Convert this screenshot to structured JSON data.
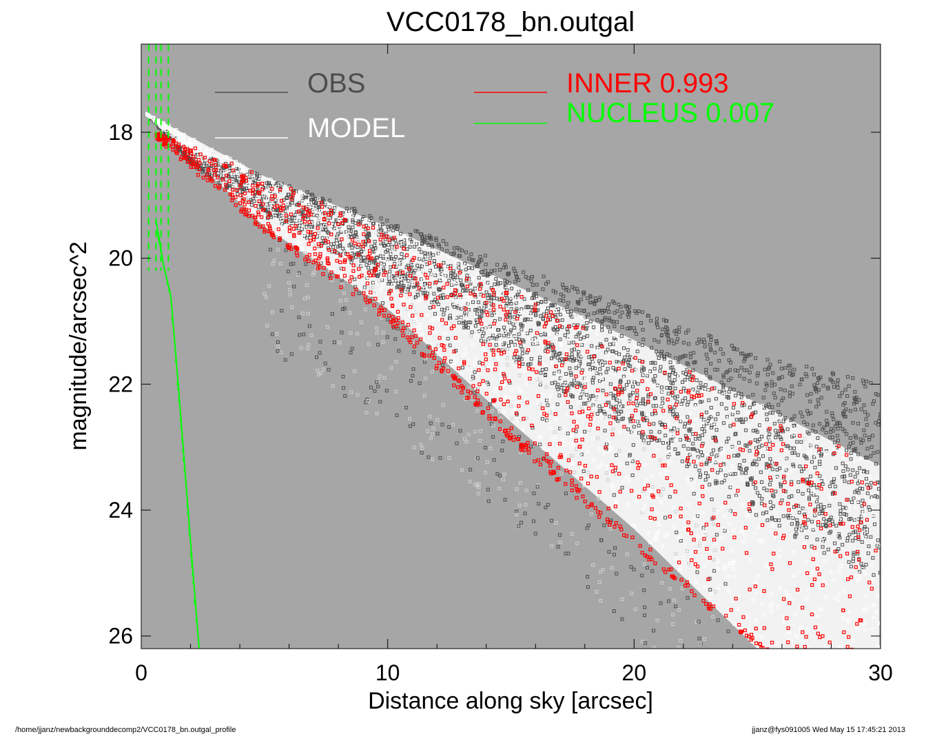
{
  "chart_data": {
    "type": "scatter",
    "title": "VCC0178_bn.outgal",
    "xlabel": "Distance along sky [arcsec]",
    "ylabel": "magnitude/arcsec^2",
    "xlim": [
      0,
      30
    ],
    "ylim": [
      26.2,
      16.6
    ],
    "y_inverted": true,
    "x_ticks": [
      "0",
      "10",
      "20",
      "30"
    ],
    "y_ticks": [
      "18",
      "20",
      "22",
      "24",
      "26"
    ],
    "background_color": "#a6a6a6",
    "legend": [
      {
        "label": "OBS",
        "color": "#4d4d4d"
      },
      {
        "label": "MODEL",
        "color": "#ffffff"
      },
      {
        "label": "INNER",
        "value": "0.993",
        "color": "#ff0000"
      },
      {
        "label": "NUCLEUS",
        "value": "0.007",
        "color": "#00ff00"
      }
    ],
    "series": [
      {
        "name": "OBS",
        "color": "#4d4d4d",
        "band_upper": [
          [
            0.2,
            17.7
          ],
          [
            2,
            18.3
          ],
          [
            5,
            18.7
          ],
          [
            10,
            19.4
          ],
          [
            15,
            20.1
          ],
          [
            20,
            20.8
          ],
          [
            25,
            21.5
          ],
          [
            30,
            22.0
          ]
        ],
        "band_lower": [
          [
            0.2,
            17.7
          ],
          [
            2,
            18.5
          ],
          [
            5,
            19.3
          ],
          [
            10,
            20.4
          ],
          [
            15,
            21.6
          ],
          [
            20,
            22.8
          ],
          [
            25,
            24.1
          ],
          [
            30,
            25.2
          ]
        ],
        "scatter_lower_extent": [
          [
            5,
            20.2
          ],
          [
            10,
            21.5
          ],
          [
            15,
            23.0
          ],
          [
            20,
            24.8
          ],
          [
            22,
            25.8
          ]
        ]
      },
      {
        "name": "MODEL",
        "color": "#ffffff",
        "edge_upper": [
          [
            0.2,
            17.7
          ],
          [
            5,
            18.7
          ],
          [
            10,
            19.5
          ],
          [
            15,
            20.4
          ],
          [
            20,
            21.3
          ],
          [
            25,
            22.3
          ],
          [
            30,
            23.3
          ]
        ],
        "edge_lower": [
          [
            0.2,
            17.7
          ],
          [
            5,
            19.5
          ],
          [
            10,
            20.8
          ],
          [
            15,
            22.6
          ],
          [
            20,
            24.3
          ],
          [
            25,
            26.2
          ],
          [
            30,
            27.5
          ]
        ]
      },
      {
        "name": "INNER",
        "value": 0.993,
        "color": "#ff0000",
        "edge_upper": [
          [
            0.6,
            18.0
          ],
          [
            5,
            18.7
          ],
          [
            10,
            19.6
          ],
          [
            15,
            20.5
          ],
          [
            20,
            21.4
          ],
          [
            25,
            22.3
          ],
          [
            30,
            23.3
          ]
        ],
        "edge_lower": [
          [
            0.6,
            18.1
          ],
          [
            5,
            19.6
          ],
          [
            10,
            21.0
          ],
          [
            15,
            22.9
          ],
          [
            20,
            24.6
          ],
          [
            25,
            26.2
          ]
        ]
      },
      {
        "name": "NUCLEUS",
        "value": 0.007,
        "color": "#00ff00",
        "line": [
          [
            0.6,
            19.4
          ],
          [
            0.9,
            20.1
          ],
          [
            1.2,
            20.6
          ],
          [
            1.5,
            22.0
          ],
          [
            1.8,
            23.5
          ],
          [
            2.1,
            25.0
          ],
          [
            2.35,
            26.2
          ]
        ],
        "dashes_x": [
          0.3,
          0.6,
          0.8,
          1.1
        ]
      }
    ]
  },
  "footer": {
    "path": "/home/jjanz/newbackgrounddecomp2/VCC0178_bn.outgal_profile",
    "stamp": "jjanz@fys091005  Wed May 15 17:45:21 2013"
  }
}
